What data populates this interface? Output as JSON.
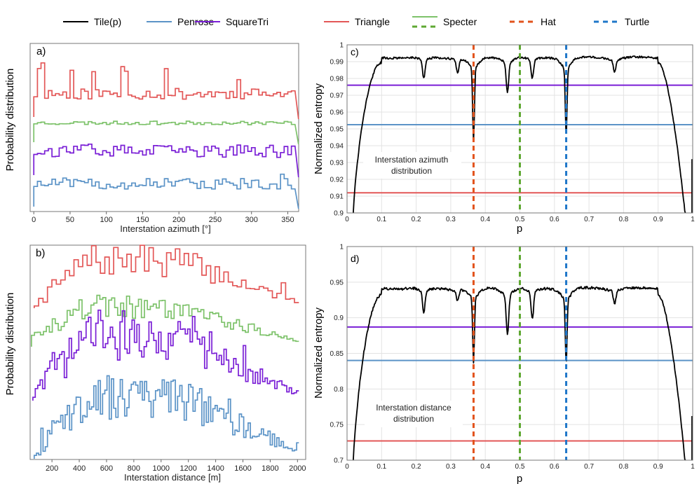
{
  "legend": {
    "items": [
      {
        "label": "Tile(p)",
        "color": "#000000",
        "style": "solid"
      },
      {
        "label": "Penrose",
        "color": "#5b93c7",
        "style": "solid"
      },
      {
        "label": "SquareTri",
        "color": "#7a1fd6",
        "style": "solid"
      },
      {
        "label": "Triangle",
        "color": "#e35757",
        "style": "solid"
      },
      {
        "label": "Specter",
        "color": "#7dc26a",
        "style": "solid-over-dashed",
        "color2": "#5fa832"
      },
      {
        "label": "Hat",
        "color": "#e2531c",
        "style": "dashed"
      },
      {
        "label": "Turtle",
        "color": "#1f77c9",
        "style": "dashed"
      }
    ]
  },
  "chart_data": [
    {
      "id": "a",
      "panel_label": "a)",
      "type": "line",
      "title": "",
      "xlabel": "Interstation azimuth [°]",
      "ylabel": "Probability distribution",
      "xlim": [
        -5,
        365
      ],
      "x_ticks": [
        "0",
        "50",
        "100",
        "150",
        "200",
        "250",
        "300",
        "350"
      ],
      "y_ticks": [],
      "series": [
        {
          "name": "Triangle",
          "color": "#e35757"
        },
        {
          "name": "Specter",
          "color": "#7dc26a"
        },
        {
          "name": "SquareTri",
          "color": "#7a1fd6"
        },
        {
          "name": "Penrose",
          "color": "#5b93c7"
        }
      ]
    },
    {
      "id": "b",
      "panel_label": "b)",
      "type": "line",
      "title": "",
      "xlabel": "Interstation distance [m]",
      "ylabel": "Probability distribution",
      "xlim": [
        40,
        2060
      ],
      "x_ticks": [
        "200",
        "400",
        "600",
        "800",
        "1000",
        "1200",
        "1400",
        "1600",
        "1800",
        "2000"
      ],
      "y_ticks": [],
      "series": [
        {
          "name": "Triangle",
          "color": "#e35757"
        },
        {
          "name": "Specter",
          "color": "#7dc26a"
        },
        {
          "name": "SquareTri",
          "color": "#7a1fd6"
        },
        {
          "name": "Penrose",
          "color": "#5b93c7"
        }
      ]
    },
    {
      "id": "c",
      "panel_label": "c)",
      "type": "line",
      "title": "",
      "xlabel": "p",
      "ylabel": "Normalized entropy",
      "annotation": [
        "Interstation azimuth",
        "distribution"
      ],
      "xlim": [
        0,
        1
      ],
      "ylim": [
        0.9,
        1.0
      ],
      "x_ticks": [
        "0",
        "0.1",
        "0.2",
        "0.3",
        "0.4",
        "0.5",
        "0.6",
        "0.7",
        "0.8",
        "0.9",
        "1"
      ],
      "y_ticks": [
        "0.9",
        "0.91",
        "0.92",
        "0.93",
        "0.94",
        "0.95",
        "0.96",
        "0.97",
        "0.98",
        "0.99",
        "1"
      ],
      "hlines": [
        {
          "name": "SquareTri",
          "y": 0.976,
          "color": "#7a1fd6"
        },
        {
          "name": "Penrose",
          "y": 0.9525,
          "color": "#5b93c7"
        },
        {
          "name": "Triangle",
          "y": 0.912,
          "color": "#e35757"
        }
      ],
      "vlines": [
        {
          "name": "Hat",
          "x": 0.366,
          "color": "#e2531c"
        },
        {
          "name": "Specter",
          "x": 0.5,
          "color": "#5fa832"
        },
        {
          "name": "Turtle",
          "x": 0.634,
          "color": "#1f77c9"
        }
      ],
      "tile_curve": {
        "name": "Tile(p)",
        "plateau": 0.993,
        "edge_start": 0.9,
        "end_value": 0.932,
        "dips": [
          {
            "x": 0.222,
            "y": 0.982
          },
          {
            "x": 0.32,
            "y": 0.985
          },
          {
            "x": 0.366,
            "y": 0.949
          },
          {
            "x": 0.464,
            "y": 0.975
          },
          {
            "x": 0.536,
            "y": 0.982
          },
          {
            "x": 0.634,
            "y": 0.953
          },
          {
            "x": 0.774,
            "y": 0.986
          }
        ]
      }
    },
    {
      "id": "d",
      "panel_label": "d)",
      "type": "line",
      "title": "",
      "xlabel": "p",
      "ylabel": "Normalized entropy",
      "annotation": [
        "Interstation distance",
        "distribution"
      ],
      "xlim": [
        0,
        1
      ],
      "ylim": [
        0.7,
        1.0
      ],
      "x_ticks": [
        "0",
        "0.1",
        "0.2",
        "0.3",
        "0.4",
        "0.5",
        "0.6",
        "0.7",
        "0.8",
        "0.9",
        "1"
      ],
      "y_ticks": [
        "0.7",
        "0.75",
        "0.8",
        "0.85",
        "0.9",
        "0.95",
        "1"
      ],
      "hlines": [
        {
          "name": "SquareTri",
          "y": 0.887,
          "color": "#7a1fd6"
        },
        {
          "name": "Penrose",
          "y": 0.84,
          "color": "#5b93c7"
        },
        {
          "name": "Triangle",
          "y": 0.727,
          "color": "#e35757"
        }
      ],
      "vlines": [
        {
          "name": "Hat",
          "x": 0.366,
          "color": "#e2531c"
        },
        {
          "name": "Specter",
          "x": 0.5,
          "color": "#5fa832"
        },
        {
          "name": "Turtle",
          "x": 0.634,
          "color": "#1f77c9"
        }
      ],
      "tile_curve": {
        "name": "Tile(p)",
        "plateau": 0.943,
        "edge_start": 0.7,
        "end_value": 0.762,
        "dips": [
          {
            "x": 0.222,
            "y": 0.912
          },
          {
            "x": 0.32,
            "y": 0.928
          },
          {
            "x": 0.366,
            "y": 0.851
          },
          {
            "x": 0.464,
            "y": 0.887
          },
          {
            "x": 0.536,
            "y": 0.904
          },
          {
            "x": 0.634,
            "y": 0.85
          },
          {
            "x": 0.774,
            "y": 0.925
          }
        ]
      }
    }
  ]
}
